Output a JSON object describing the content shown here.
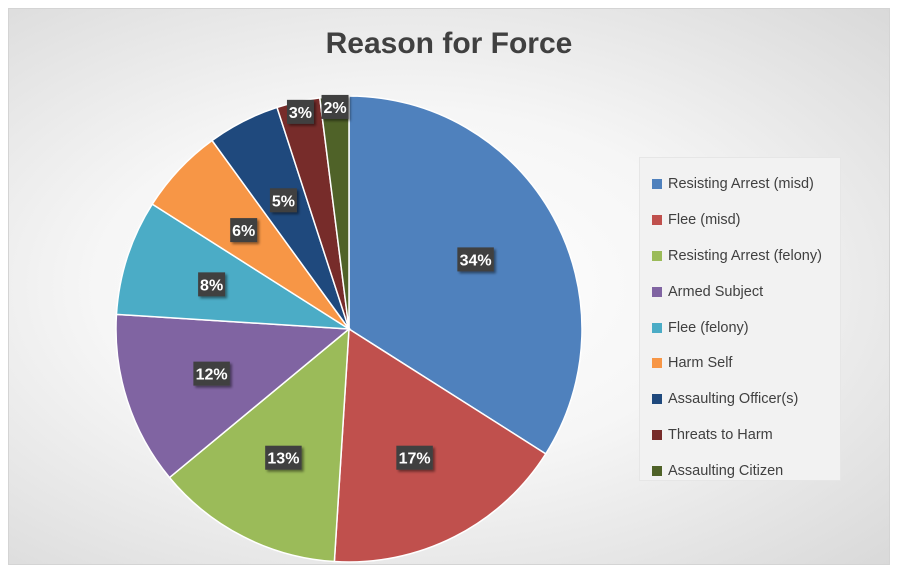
{
  "chart_data": {
    "type": "pie",
    "title": "Reason for Force",
    "categories": [
      "Resisting Arrest (misd)",
      "Flee (misd)",
      "Resisting Arrest (felony)",
      "Armed Subject",
      "Flee (felony)",
      "Harm Self",
      "Assaulting Officer(s)",
      "Threats to Harm",
      "Assaulting Citizen"
    ],
    "values": [
      34,
      17,
      13,
      12,
      8,
      6,
      5,
      3,
      2
    ],
    "value_labels": [
      "34%",
      "17%",
      "13%",
      "12%",
      "8%",
      "6%",
      "5%",
      "3%",
      "2%"
    ],
    "colors": [
      "#4f81bd",
      "#c0504d",
      "#9bbb59",
      "#8064a2",
      "#4bacc6",
      "#f79646",
      "#1f497d",
      "#772c2a",
      "#4f6228"
    ],
    "legend_position": "right"
  }
}
